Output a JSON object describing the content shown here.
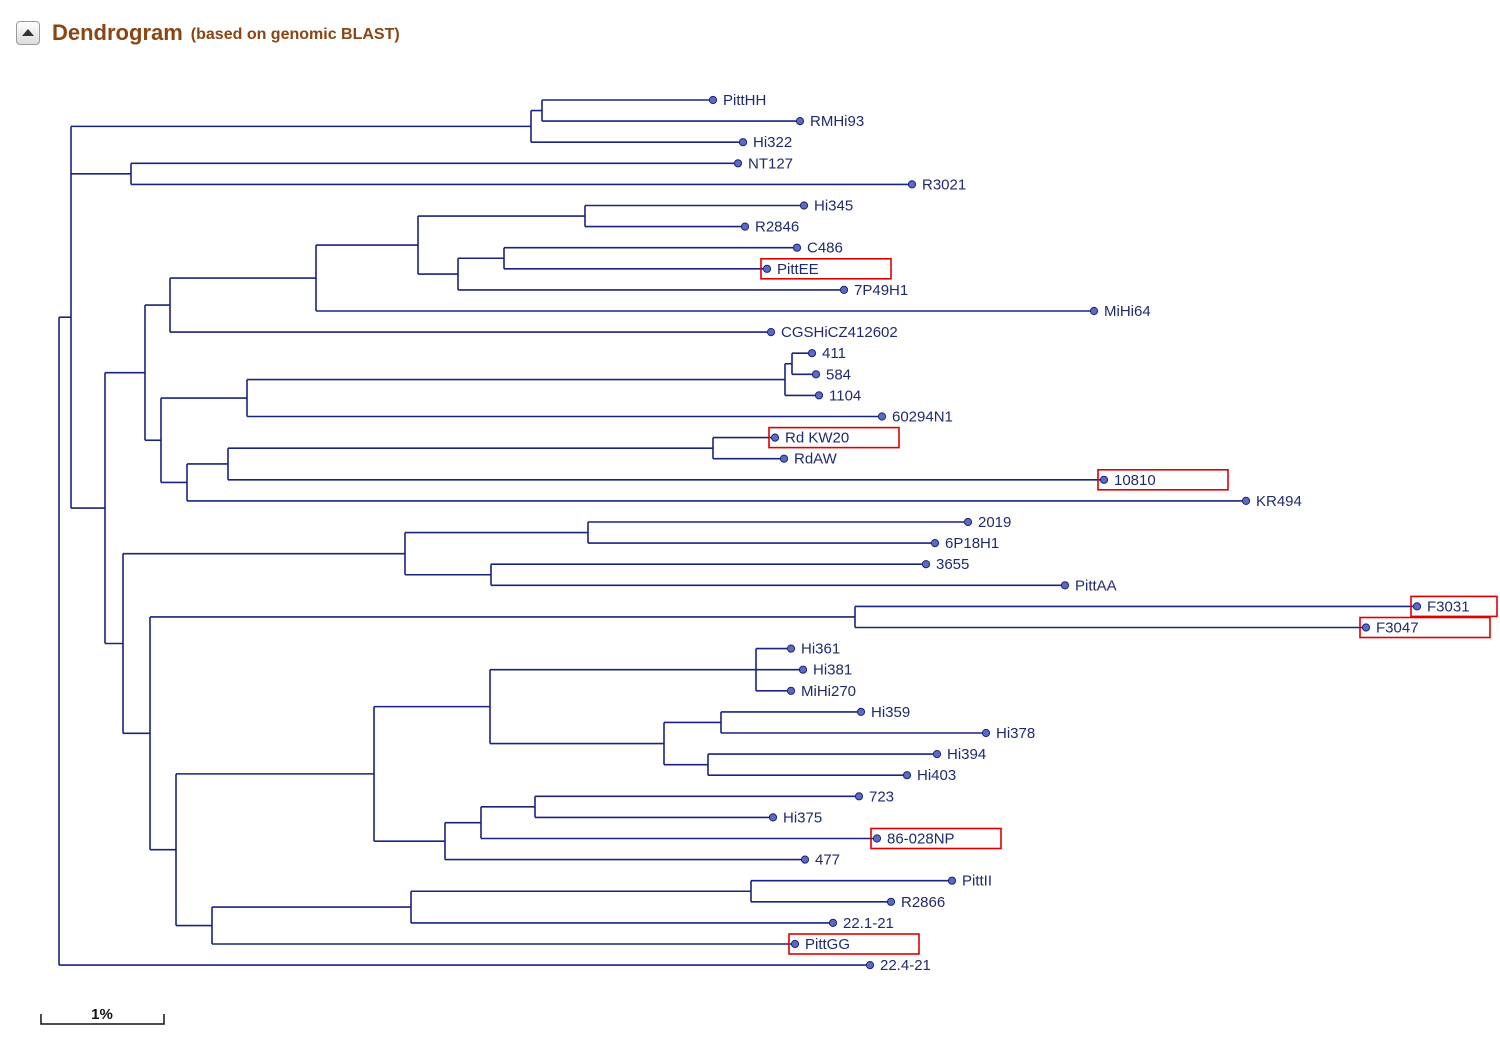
{
  "header": {
    "title": "Dendrogram",
    "subtitle": "(based on genomic BLAST)",
    "collapse_icon": "triangle-up-icon"
  },
  "scale_bar": {
    "label": "1%"
  },
  "colors": {
    "branch": "#1a237e",
    "leaf_marker": "#5c6bc0",
    "highlight_box": "#e00000",
    "title": "#8b4513"
  },
  "tree": {
    "leaves": [
      {
        "id": "PittHH",
        "label": "PittHH",
        "highlighted": false
      },
      {
        "id": "RMHi93",
        "label": "RMHi93",
        "highlighted": false
      },
      {
        "id": "Hi322",
        "label": "Hi322",
        "highlighted": false
      },
      {
        "id": "NT127",
        "label": "NT127",
        "highlighted": false
      },
      {
        "id": "R3021",
        "label": "R3021",
        "highlighted": false
      },
      {
        "id": "Hi345",
        "label": "Hi345",
        "highlighted": false
      },
      {
        "id": "R2846",
        "label": "R2846",
        "highlighted": false
      },
      {
        "id": "C486",
        "label": "C486",
        "highlighted": false
      },
      {
        "id": "PittEE",
        "label": "PittEE",
        "highlighted": true
      },
      {
        "id": "7P49H1",
        "label": "7P49H1",
        "highlighted": false
      },
      {
        "id": "MiHi64",
        "label": "MiHi64",
        "highlighted": false
      },
      {
        "id": "CGSHiCZ412602",
        "label": "CGSHiCZ412602",
        "highlighted": false
      },
      {
        "id": "411",
        "label": "411",
        "highlighted": false
      },
      {
        "id": "584",
        "label": "584",
        "highlighted": false
      },
      {
        "id": "1104",
        "label": "1104",
        "highlighted": false
      },
      {
        "id": "60294N1",
        "label": "60294N1",
        "highlighted": false
      },
      {
        "id": "RdKW20",
        "label": "Rd KW20",
        "highlighted": true
      },
      {
        "id": "RdAW",
        "label": "RdAW",
        "highlighted": false
      },
      {
        "id": "10810",
        "label": "10810",
        "highlighted": true
      },
      {
        "id": "KR494",
        "label": "KR494",
        "highlighted": false
      },
      {
        "id": "2019",
        "label": "2019",
        "highlighted": false
      },
      {
        "id": "6P18H1",
        "label": "6P18H1",
        "highlighted": false
      },
      {
        "id": "3655",
        "label": "3655",
        "highlighted": false
      },
      {
        "id": "PittAA",
        "label": "PittAA",
        "highlighted": false
      },
      {
        "id": "F3031",
        "label": "F3031",
        "highlighted": true
      },
      {
        "id": "F3047",
        "label": "F3047",
        "highlighted": true
      },
      {
        "id": "Hi361",
        "label": "Hi361",
        "highlighted": false
      },
      {
        "id": "Hi381",
        "label": "Hi381",
        "highlighted": false
      },
      {
        "id": "MiHi270",
        "label": "MiHi270",
        "highlighted": false
      },
      {
        "id": "Hi359",
        "label": "Hi359",
        "highlighted": false
      },
      {
        "id": "Hi378",
        "label": "Hi378",
        "highlighted": false
      },
      {
        "id": "Hi394",
        "label": "Hi394",
        "highlighted": false
      },
      {
        "id": "Hi403",
        "label": "Hi403",
        "highlighted": false
      },
      {
        "id": "723",
        "label": "723",
        "highlighted": false
      },
      {
        "id": "Hi375",
        "label": "Hi375",
        "highlighted": false
      },
      {
        "id": "86-028NP",
        "label": "86-028NP",
        "highlighted": true
      },
      {
        "id": "477",
        "label": "477",
        "highlighted": false
      },
      {
        "id": "PittII",
        "label": "PittII",
        "highlighted": false
      },
      {
        "id": "R2866",
        "label": "R2866",
        "highlighted": false
      },
      {
        "id": "22.1-21",
        "label": "22.1-21",
        "highlighted": false
      },
      {
        "id": "PittGG",
        "label": "PittGG",
        "highlighted": true
      },
      {
        "id": "22.4-21",
        "label": "22.4-21",
        "highlighted": false
      }
    ]
  }
}
